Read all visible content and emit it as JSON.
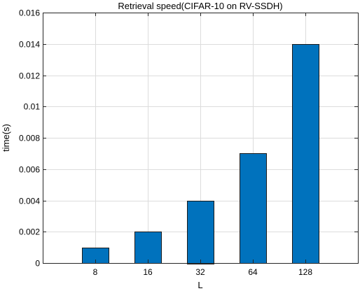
{
  "chart_data": {
    "type": "bar",
    "title": "Retrieval speed(CIFAR-10 on RV-SSDH)",
    "xlabel": "L",
    "ylabel": "time(s)",
    "categories": [
      "8",
      "16",
      "32",
      "64",
      "128"
    ],
    "values": [
      0.001,
      0.002,
      0.004,
      0.007,
      0.014
    ],
    "ylim": [
      0,
      0.016
    ],
    "yticks": [
      0,
      0.002,
      0.004,
      0.006,
      0.008,
      0.01,
      0.012,
      0.014,
      0.016
    ],
    "ytick_labels": [
      "0",
      "0.002",
      "0.004",
      "0.006",
      "0.008",
      "0.01",
      "0.012",
      "0.014",
      "0.016"
    ],
    "grid": true,
    "bar_color": "#0072BD"
  }
}
